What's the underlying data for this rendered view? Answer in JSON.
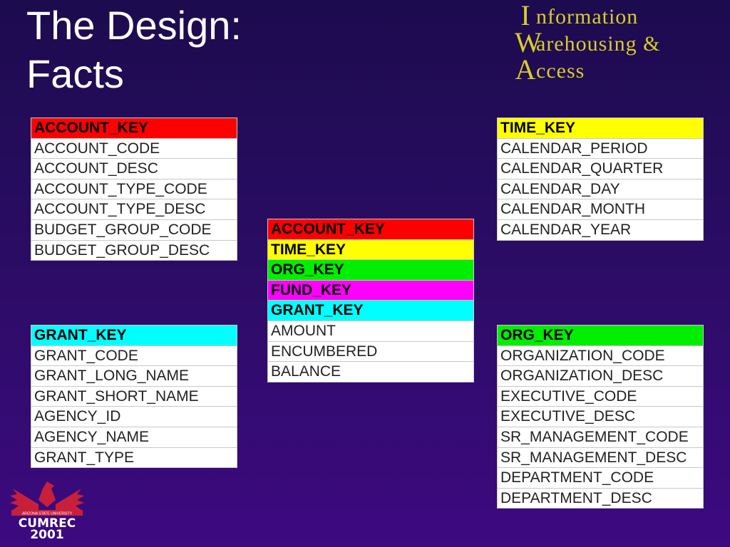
{
  "title": {
    "line1": "The Design:",
    "line2": "Facts"
  },
  "logo": {
    "letters": [
      "I",
      "W",
      "A"
    ],
    "lines": [
      "nformation",
      "arehousing &",
      "ccess"
    ]
  },
  "cumrec_logo": {
    "text": "CUMREC 2001",
    "banner": "ARIZONA STATE UNIVERSITY"
  },
  "tables": {
    "account": {
      "key": "ACCOUNT_KEY",
      "key_color": "#ff0000",
      "fields": [
        "ACCOUNT_CODE",
        "ACCOUNT_DESC",
        "ACCOUNT_TYPE_CODE",
        "ACCOUNT_TYPE_DESC",
        "BUDGET_GROUP_CODE",
        "BUDGET_GROUP_DESC"
      ]
    },
    "grant": {
      "key": "GRANT_KEY",
      "key_color": "#00ffff",
      "fields": [
        "GRANT_CODE",
        "GRANT_LONG_NAME",
        "GRANT_SHORT_NAME",
        "AGENCY_ID",
        "AGENCY_NAME",
        "GRANT_TYPE"
      ]
    },
    "time": {
      "key": "TIME_KEY",
      "key_color": "#ffff00",
      "fields": [
        "CALENDAR_PERIOD",
        "CALENDAR_QUARTER",
        "CALENDAR_DAY",
        "CALENDAR_MONTH",
        "CALENDAR_YEAR"
      ]
    },
    "org": {
      "key": "ORG_KEY",
      "key_color": "#00ee00",
      "fields": [
        "ORGANIZATION_CODE",
        "ORGANIZATION_DESC",
        "EXECUTIVE_CODE",
        "EXECUTIVE_DESC",
        "SR_MANAGEMENT_CODE",
        "SR_MANAGEMENT_DESC",
        "DEPARTMENT_CODE",
        "DEPARTMENT_DESC"
      ]
    },
    "fact": {
      "keys": [
        {
          "label": "ACCOUNT_KEY",
          "color": "#ff0000"
        },
        {
          "label": "TIME_KEY",
          "color": "#ffff00"
        },
        {
          "label": "ORG_KEY",
          "color": "#00ee00"
        },
        {
          "label": "FUND_KEY",
          "color": "#ff00ff"
        },
        {
          "label": "GRANT_KEY",
          "color": "#00ffff"
        }
      ],
      "fields": [
        "AMOUNT",
        "ENCUMBERED",
        "BALANCE"
      ]
    }
  }
}
